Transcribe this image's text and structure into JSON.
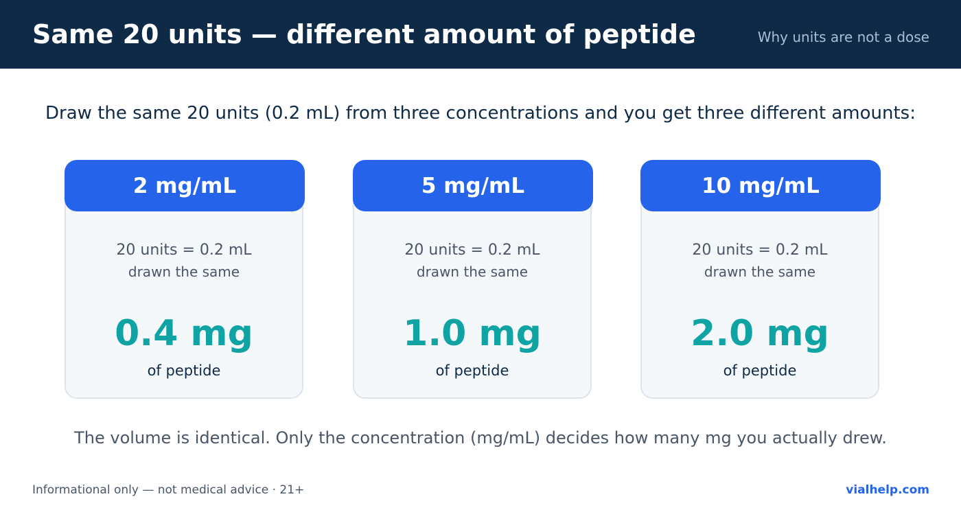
{
  "header": {
    "title": "Same 20 units — different amount of peptide",
    "subtitle": "Why units are not a dose"
  },
  "intro": "Draw the same 20 units (0.2 mL) from three concentrations and you get three different amounts:",
  "cards": [
    {
      "concentration": "2 mg/mL",
      "volume_line": "20 units = 0.2 mL",
      "note": "drawn the same",
      "amount": "0.4 mg",
      "amount_label": "of peptide"
    },
    {
      "concentration": "5 mg/mL",
      "volume_line": "20 units = 0.2 mL",
      "note": "drawn the same",
      "amount": "1.0 mg",
      "amount_label": "of peptide"
    },
    {
      "concentration": "10 mg/mL",
      "volume_line": "20 units = 0.2 mL",
      "note": "drawn the same",
      "amount": "2.0 mg",
      "amount_label": "of peptide"
    }
  ],
  "conclusion": "The volume is identical. Only the concentration (mg/mL) decides how many mg you actually drew.",
  "footer": {
    "disclaimer": "Informational only — not medical advice · 21+",
    "site": "vialhelp.com"
  },
  "colors": {
    "header_bg": "#0f2a47",
    "accent_blue": "#2563eb",
    "amount_teal": "#0fa3a3"
  }
}
